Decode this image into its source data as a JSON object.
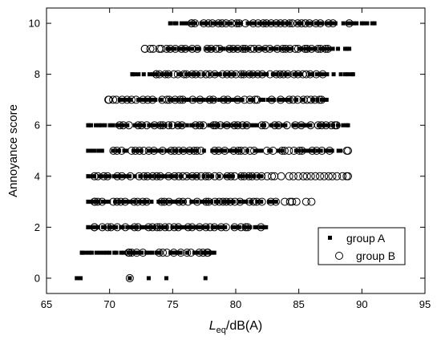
{
  "chart_data": {
    "type": "scatter",
    "xlabel_main": "L",
    "xlabel_sub": "eq",
    "xlabel_rest": "/dB(A)",
    "ylabel": "Annoyance score",
    "xlim": [
      65,
      95
    ],
    "ylim": [
      -0.6,
      10.6
    ],
    "xticks": [
      65,
      70,
      75,
      80,
      85,
      90,
      95
    ],
    "yticks": [
      0,
      2,
      4,
      6,
      8,
      10
    ],
    "legend_position": "bottom-right",
    "series": [
      {
        "name": "group A",
        "marker": "filled-square",
        "color": "#000000",
        "ranges": [
          {
            "y": 0,
            "x": [
              67.4,
              67.7,
              71.6,
              73.1,
              74.5,
              77.6
            ]
          },
          {
            "y": 1,
            "x_min": 67.8,
            "x_max": 78.3
          },
          {
            "y": 2,
            "x_min": 68.3,
            "x_max": 82.4
          },
          {
            "y": 3,
            "x_min": 68.3,
            "x_max": 83.2
          },
          {
            "y": 4,
            "x_min": 68.3,
            "x_max": 82.0
          },
          {
            "y": 5,
            "x_min": 68.3,
            "x_max": 88.3
          },
          {
            "y": 6,
            "x_min": 68.3,
            "x_max": 88.9
          },
          {
            "y": 7,
            "x_min": 70.8,
            "x_max": 87.2
          },
          {
            "y": 8,
            "x_min": 71.8,
            "x_max": 89.3
          },
          {
            "y": 9,
            "x_min": 74.6,
            "x_max": 89.0
          },
          {
            "y": 10,
            "x_min": 74.8,
            "x_max": 91.0
          }
        ]
      },
      {
        "name": "group B",
        "marker": "open-circle",
        "color": "#000000",
        "ranges": [
          {
            "y": 0,
            "x": [
              71.6
            ]
          },
          {
            "y": 1,
            "x_min": 71.5,
            "x_max": 77.8
          },
          {
            "y": 2,
            "x_min": 68.8,
            "x_max": 82.0
          },
          {
            "y": 3,
            "x_min": 68.8,
            "x_max": 86.0
          },
          {
            "y": 4,
            "x_min": 68.8,
            "x_max": 88.9
          },
          {
            "y": 5,
            "x_min": 70.3,
            "x_max": 88.9
          },
          {
            "y": 6,
            "x_min": 70.8,
            "x_max": 88.0
          },
          {
            "y": 7,
            "x_min": 69.9,
            "x_max": 86.8
          },
          {
            "y": 8,
            "x_min": 73.7,
            "x_max": 86.9
          },
          {
            "y": 9,
            "x_min": 72.8,
            "x_max": 87.3
          },
          {
            "y": 10,
            "x_min": 76.5,
            "x_max": 89.0
          }
        ]
      }
    ]
  }
}
